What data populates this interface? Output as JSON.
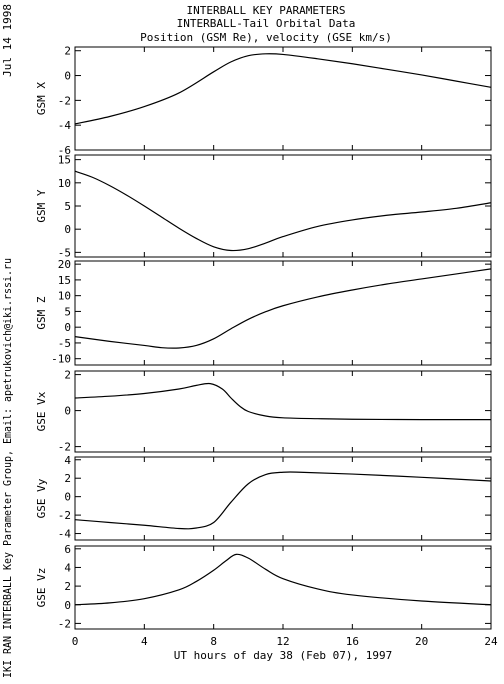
{
  "header": {
    "line1": "INTERBALL KEY PARAMETERS",
    "line2": "INTERBALL-Tail Orbital Data",
    "line3": "Position (GSM Re), velocity (GSE km/s)"
  },
  "side_labels": {
    "date": "Jul 14 1998",
    "credit": "IKI RAN INTERBALL Key Parameter Group, Email: apetrukovich@iki.rssi.ru"
  },
  "chart_data": {
    "type": "line",
    "xlabel": "UT hours of day  38 (Feb 07), 1997",
    "xlim": [
      0,
      24
    ],
    "x_ticks": [
      0,
      4,
      8,
      12,
      16,
      20,
      24
    ],
    "x_tick_labels": [
      "0",
      "4",
      "8",
      "12",
      "16",
      "20",
      "24"
    ],
    "grid": false,
    "panels": [
      {
        "ylabel": "GSM X",
        "ylim": [
          -6,
          2.3
        ],
        "y_ticks": [
          -6,
          -4,
          -2,
          0,
          2
        ],
        "y_tick_labels": [
          "-6",
          "-4",
          "-2",
          "0",
          "2"
        ],
        "series": [
          {
            "x": [
              0,
              2,
              4,
              6,
              8,
              9,
              10,
              11,
              12,
              14,
              16,
              18,
              20,
              22,
              24
            ],
            "y": [
              -3.9,
              -3.3,
              -2.5,
              -1.4,
              0.3,
              1.1,
              1.6,
              1.75,
              1.7,
              1.35,
              0.95,
              0.5,
              0.05,
              -0.45,
              -0.95
            ]
          }
        ]
      },
      {
        "ylabel": "GSM Y",
        "ylim": [
          -6,
          16
        ],
        "y_ticks": [
          -5,
          0,
          5,
          10,
          15
        ],
        "y_tick_labels": [
          "-5",
          "0",
          "5",
          "10",
          "15"
        ],
        "series": [
          {
            "x": [
              0,
              1,
              2,
              3,
              4,
              5,
              6,
              7,
              8,
              9,
              10,
              11,
              12,
              14,
              16,
              18,
              20,
              22,
              24
            ],
            "y": [
              12.5,
              11.2,
              9.4,
              7.3,
              5.0,
              2.6,
              0.2,
              -2.0,
              -3.8,
              -4.6,
              -4.2,
              -3.0,
              -1.6,
              0.6,
              2.0,
              3.0,
              3.7,
              4.5,
              5.7
            ]
          }
        ]
      },
      {
        "ylabel": "GSM Z",
        "ylim": [
          -12,
          21
        ],
        "y_ticks": [
          -10,
          -5,
          0,
          5,
          10,
          15,
          20
        ],
        "y_tick_labels": [
          "-10",
          "-5",
          "0",
          "5",
          "10",
          "15",
          "20"
        ],
        "series": [
          {
            "x": [
              0,
              2,
              4,
              5,
              6,
              7,
              8,
              9,
              10,
              11,
              12,
              14,
              16,
              18,
              20,
              22,
              24
            ],
            "y": [
              -3.0,
              -4.5,
              -5.8,
              -6.5,
              -6.6,
              -5.8,
              -3.7,
              -0.5,
              2.5,
              4.9,
              6.8,
              9.6,
              11.8,
              13.7,
              15.3,
              16.9,
              18.5
            ]
          }
        ]
      },
      {
        "ylabel": "GSE Vx",
        "ylim": [
          -2.3,
          2.2
        ],
        "y_ticks": [
          -2,
          0,
          2
        ],
        "y_tick_labels": [
          "-2",
          "0",
          "2"
        ],
        "series": [
          {
            "x": [
              0,
              2,
              4,
              6,
              7,
              7.8,
              8.5,
              9,
              9.5,
              10,
              11,
              12,
              14,
              16,
              20,
              24
            ],
            "y": [
              0.7,
              0.8,
              0.95,
              1.2,
              1.4,
              1.5,
              1.2,
              0.7,
              0.25,
              -0.05,
              -0.3,
              -0.4,
              -0.45,
              -0.48,
              -0.5,
              -0.5
            ]
          }
        ]
      },
      {
        "ylabel": "GSE Vy",
        "ylim": [
          -4.7,
          4.3
        ],
        "y_ticks": [
          -4,
          -2,
          0,
          2,
          4
        ],
        "y_tick_labels": [
          "-4",
          "-2",
          "0",
          "2",
          "4"
        ],
        "series": [
          {
            "x": [
              0,
              2,
              4,
              6,
              7,
              8,
              9,
              10,
              11,
              12,
              13,
              16,
              20,
              24
            ],
            "y": [
              -2.5,
              -2.8,
              -3.1,
              -3.45,
              -3.4,
              -2.8,
              -0.6,
              1.4,
              2.4,
              2.65,
              2.65,
              2.45,
              2.1,
              1.7
            ]
          }
        ]
      },
      {
        "ylabel": "GSE Vz",
        "ylim": [
          -2.6,
          6.3
        ],
        "y_ticks": [
          -2,
          0,
          2,
          4,
          6
        ],
        "y_tick_labels": [
          "-2",
          "0",
          "2",
          "4",
          "6"
        ],
        "series": [
          {
            "x": [
              0,
              2,
              4,
              6,
              7,
              8,
              8.7,
              9.3,
              10,
              11,
              12,
              14,
              16,
              20,
              24
            ],
            "y": [
              0.0,
              0.2,
              0.65,
              1.6,
              2.5,
              3.7,
              4.7,
              5.4,
              5.0,
              3.8,
              2.8,
              1.7,
              1.05,
              0.4,
              0.0
            ]
          }
        ]
      }
    ]
  }
}
